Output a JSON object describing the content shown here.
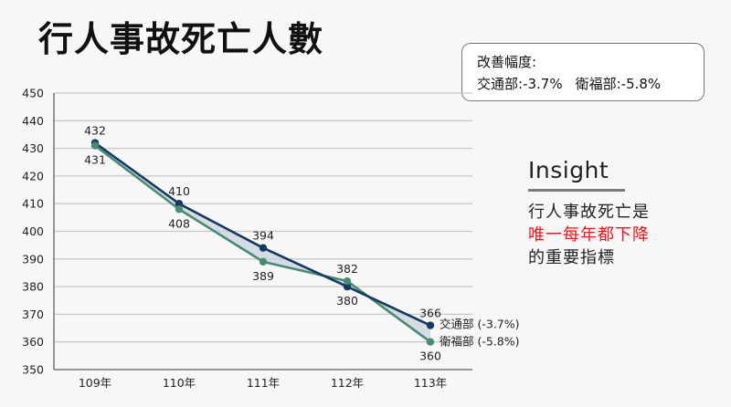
{
  "title": "行人事故死亡人數",
  "improvement_box": {
    "heading": "改善幅度:",
    "items": [
      {
        "label": "交通部:",
        "value": "-3.7%"
      },
      {
        "label": "衛福部:",
        "value": "-5.8%"
      }
    ]
  },
  "insight": {
    "heading": "Insight",
    "lines": [
      {
        "text": "行人事故死亡是",
        "highlight": false
      },
      {
        "text": "唯一每年都下降",
        "highlight": true
      },
      {
        "text": "的重要指標",
        "highlight": false
      }
    ]
  },
  "colors": {
    "moti": "#163a5f",
    "mohw": "#4a8a72",
    "fill": "#c9d3de",
    "highlight": "#e8141c",
    "grid": "#c8c8c8",
    "axis": "#777777"
  },
  "chart_data": {
    "type": "line",
    "title": "行人事故死亡人數",
    "categories": [
      "109年",
      "110年",
      "111年",
      "112年",
      "113年"
    ],
    "series": [
      {
        "name": "交通部",
        "legend": "交通部 (-3.7%)",
        "values": [
          432,
          410,
          394,
          380,
          366
        ],
        "color": "#163a5f"
      },
      {
        "name": "衛福部",
        "legend": "衛福部 (-5.8%)",
        "values": [
          431,
          408,
          389,
          382,
          360
        ],
        "color": "#4a8a72"
      }
    ],
    "xlabel": "",
    "ylabel": "",
    "ylim": [
      350,
      450
    ],
    "yticks": [
      350,
      360,
      370,
      380,
      390,
      400,
      410,
      420,
      430,
      440,
      450
    ],
    "grid": true,
    "legend_position": "inline-right-end",
    "area_between_series": true
  }
}
